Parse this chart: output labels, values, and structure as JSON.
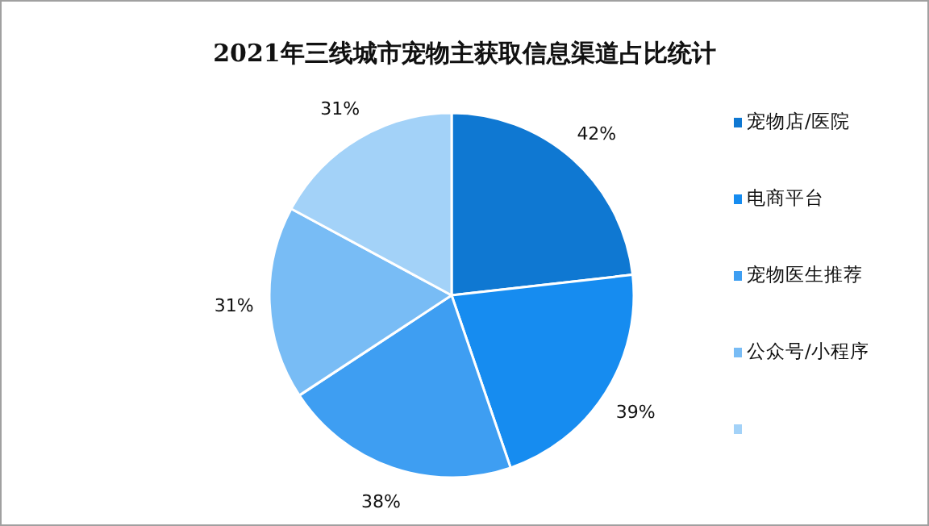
{
  "chart_data": {
    "type": "pie",
    "title": "2021年三线城市宠物主获取信息渠道占比统计",
    "categories": [
      "宠物店/医院",
      "电商平台",
      "宠物医生推荐",
      "公众号/小程序",
      null
    ],
    "values": [
      42,
      39,
      38,
      31,
      31
    ],
    "value_labels": [
      "42%",
      "39%",
      "38%",
      "31%",
      "31%"
    ],
    "colors": [
      "#0f78d2",
      "#168cf0",
      "#3e9ef2",
      "#78bcf5",
      "#a3d2f8"
    ],
    "legend": "right"
  }
}
